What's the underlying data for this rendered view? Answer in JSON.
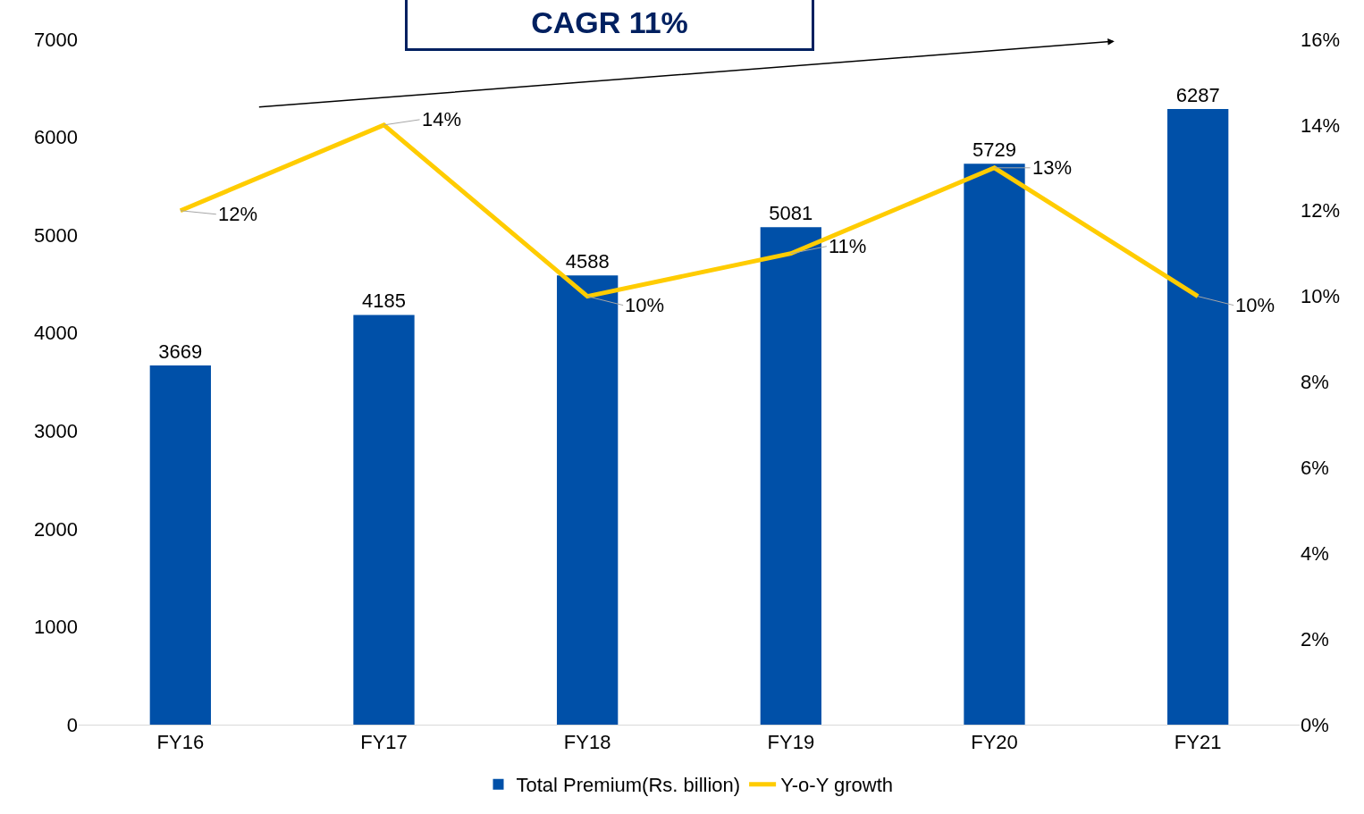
{
  "chart_data": {
    "type": "bar",
    "annotations": [
      "CAGR 11%"
    ],
    "categories": [
      "FY16",
      "FY17",
      "FY18",
      "FY19",
      "FY20",
      "FY21"
    ],
    "series": [
      {
        "name": "Total Premium(Rs. billion)",
        "color": "#0050a8",
        "values": [
          3669,
          4185,
          4588,
          5081,
          5729,
          6287
        ]
      },
      {
        "name": "Y-o-Y growth",
        "type": "line",
        "axis": "y2",
        "color": "#ffcc00",
        "values": [
          12,
          14,
          10,
          11,
          13,
          10
        ],
        "value_labels": [
          "12%",
          "14%",
          "10%",
          "11%",
          "13%",
          "10%"
        ]
      }
    ],
    "data_labels": true,
    "ylim": [
      0,
      7000
    ],
    "yticks": [
      0,
      1000,
      2000,
      3000,
      4000,
      5000,
      6000,
      7000
    ],
    "y2lim": [
      0,
      16
    ],
    "y2ticks": [
      {
        "value": 0,
        "label": "0%"
      },
      {
        "value": 2,
        "label": "2%"
      },
      {
        "value": 4,
        "label": "4%"
      },
      {
        "value": 6,
        "label": "6%"
      },
      {
        "value": 8,
        "label": "8%"
      },
      {
        "value": 10,
        "label": "10%"
      },
      {
        "value": 12,
        "label": "12%"
      },
      {
        "value": 14,
        "label": "14%"
      },
      {
        "value": 16,
        "label": "16%"
      }
    ],
    "legend": "bottom",
    "marker": "none"
  }
}
